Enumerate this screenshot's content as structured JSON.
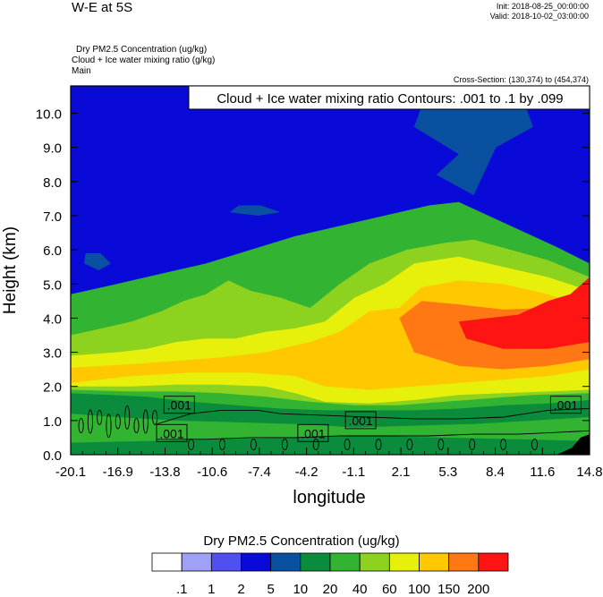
{
  "header": {
    "title": "W-E at 5S",
    "init": "Init: 2018-08-25_00:00:00",
    "valid": "Valid: 2018-10-02_03:00:00",
    "subtitle_1": "Dry PM2.5 Concentration   (ug/kg)",
    "subtitle_2": "Cloud + Ice water mixing ratio   (g/kg)",
    "subtitle_3": "Main",
    "cross_section": "Cross-Section: (130,374) to (454,374)"
  },
  "contour_info": "Cloud + Ice water mixing ratio Contours: .001 to .1 by .099",
  "colorbar": {
    "title": "Dry PM2.5 Concentration  (ug/kg)",
    "colors": [
      "#ffffff",
      "#a0a0f7",
      "#5050f0",
      "#0a0ad8",
      "#0a50a0",
      "#0a8c3c",
      "#32b432",
      "#8cd21e",
      "#e6f00a",
      "#ffc800",
      "#ff7814",
      "#ff1414"
    ],
    "labels": [
      ".1",
      "1",
      "2",
      "5",
      "10",
      "20",
      "40",
      "60",
      "100",
      "150",
      "200"
    ]
  },
  "chart_data": {
    "type": "heatmap",
    "xlabel": "longitude",
    "ylabel": "Height (km)",
    "x_ticks": [
      "-20.1",
      "-16.9",
      "-13.8",
      "-10.6",
      "-7.4",
      "-4.2",
      "-1.1",
      "2.1",
      "5.3",
      "8.4",
      "11.6",
      "14.8"
    ],
    "y_ticks": [
      "0.0",
      "1.0",
      "2.0",
      "3.0",
      "4.0",
      "5.0",
      "6.0",
      "7.0",
      "8.0",
      "9.0",
      "10.0"
    ],
    "xlim": [
      -20.1,
      14.8
    ],
    "ylim": [
      0,
      10.8
    ],
    "contour_labels": [
      {
        "text": ".001",
        "x": -12.8,
        "y": 1.45
      },
      {
        "text": ".001",
        "x": -13.3,
        "y": 0.62
      },
      {
        "text": ".001",
        "x": -3.8,
        "y": 0.62
      },
      {
        "text": ".001",
        "x": -0.6,
        "y": 1.0
      },
      {
        "text": ".001",
        "x": 13.2,
        "y": 1.45
      }
    ],
    "field_regions": [
      {
        "level": 3,
        "poly": [
          [
            -20.1,
            5.2
          ],
          [
            -17,
            6.0
          ],
          [
            -13,
            6.3
          ],
          [
            -10,
            6.5
          ],
          [
            -7,
            6.7
          ],
          [
            -4,
            7.0
          ],
          [
            -1,
            7.4
          ],
          [
            1,
            8.5
          ],
          [
            0.3,
            9.8
          ],
          [
            1.5,
            10.8
          ],
          [
            -20.1,
            10.8
          ]
        ]
      },
      {
        "level": 3,
        "poly": [
          [
            5,
            10.8
          ],
          [
            7,
            9.5
          ],
          [
            10,
            8.4
          ],
          [
            12.5,
            7.7
          ],
          [
            14.8,
            7.3
          ],
          [
            14.8,
            10.8
          ]
        ]
      },
      {
        "level": 4,
        "poly": [
          [
            4,
            10.8
          ],
          [
            3,
            9.6
          ],
          [
            6,
            8.8
          ],
          [
            4.5,
            8.2
          ],
          [
            7,
            7.6
          ],
          [
            8.5,
            9.0
          ],
          [
            11,
            9.6
          ],
          [
            10,
            10.8
          ]
        ]
      },
      {
        "level": 4,
        "poly": [
          [
            -19.2,
            5.6
          ],
          [
            -18.2,
            5.4
          ],
          [
            -17.4,
            5.6
          ],
          [
            -18.1,
            5.9
          ],
          [
            -19.1,
            5.9
          ]
        ]
      },
      {
        "level": 4,
        "poly": [
          [
            -9.4,
            7.1
          ],
          [
            -7.5,
            7.0
          ],
          [
            -6.0,
            7.1
          ],
          [
            -7.3,
            7.3
          ],
          [
            -8.8,
            7.3
          ]
        ]
      },
      {
        "level": 5,
        "poly": [
          [
            -20.1,
            0
          ],
          [
            14.8,
            0
          ],
          [
            14.8,
            2.4
          ],
          [
            12,
            2.3
          ],
          [
            8,
            2.0
          ],
          [
            4,
            1.8
          ],
          [
            0,
            1.75
          ],
          [
            -4,
            1.8
          ],
          [
            -8,
            1.85
          ],
          [
            -12,
            1.9
          ],
          [
            -16,
            1.95
          ],
          [
            -20.1,
            2.0
          ]
        ]
      },
      {
        "level": 6,
        "poly": [
          [
            -20.1,
            1.8
          ],
          [
            -15,
            1.7
          ],
          [
            -12,
            1.55
          ],
          [
            -9,
            1.45
          ],
          [
            -6,
            1.35
          ],
          [
            -3,
            1.3
          ],
          [
            0,
            1.3
          ],
          [
            3,
            1.3
          ],
          [
            6,
            1.35
          ],
          [
            9,
            1.45
          ],
          [
            12,
            1.5
          ],
          [
            14.8,
            1.6
          ],
          [
            14.8,
            5.6
          ],
          [
            12.5,
            6.1
          ],
          [
            10,
            6.6
          ],
          [
            8,
            7.0
          ],
          [
            6,
            7.4
          ],
          [
            4,
            7.3
          ],
          [
            2,
            7.1
          ],
          [
            -2,
            6.7
          ],
          [
            -5,
            6.4
          ],
          [
            -8,
            6.0
          ],
          [
            -11,
            5.6
          ],
          [
            -14,
            5.3
          ],
          [
            -17,
            5.0
          ],
          [
            -20.1,
            4.7
          ]
        ]
      },
      {
        "level": 7,
        "poly": [
          [
            -20.1,
            1.9
          ],
          [
            -16,
            1.85
          ],
          [
            -13,
            1.85
          ],
          [
            -10,
            1.8
          ],
          [
            -7,
            1.7
          ],
          [
            -4,
            1.55
          ],
          [
            -1,
            1.45
          ],
          [
            2,
            1.45
          ],
          [
            5,
            1.55
          ],
          [
            8,
            1.65
          ],
          [
            11,
            1.75
          ],
          [
            14.8,
            1.8
          ],
          [
            14.8,
            5.2
          ],
          [
            12,
            5.7
          ],
          [
            9.5,
            6.0
          ],
          [
            7,
            6.3
          ],
          [
            5,
            6.2
          ],
          [
            2.5,
            6.0
          ],
          [
            0,
            5.6
          ],
          [
            -2,
            5.0
          ],
          [
            -4,
            4.3
          ],
          [
            -6,
            4.6
          ],
          [
            -8,
            4.8
          ],
          [
            -9.5,
            5.1
          ],
          [
            -11,
            4.7
          ],
          [
            -12.5,
            4.5
          ],
          [
            -14,
            4.2
          ],
          [
            -16,
            3.9
          ],
          [
            -18,
            3.7
          ],
          [
            -20.1,
            3.5
          ]
        ]
      },
      {
        "level": 8,
        "poly": [
          [
            -20.1,
            2.0
          ],
          [
            -16,
            2.0
          ],
          [
            -13,
            2.05
          ],
          [
            -10,
            2.05
          ],
          [
            -7,
            2.0
          ],
          [
            -5,
            1.8
          ],
          [
            -3,
            1.55
          ],
          [
            0,
            1.5
          ],
          [
            3,
            1.6
          ],
          [
            6,
            1.75
          ],
          [
            9,
            1.8
          ],
          [
            12,
            1.85
          ],
          [
            14.8,
            1.9
          ],
          [
            14.8,
            4.8
          ],
          [
            12,
            5.2
          ],
          [
            10,
            5.4
          ],
          [
            8,
            5.6
          ],
          [
            6,
            5.8
          ],
          [
            3,
            5.6
          ],
          [
            1,
            5.0
          ],
          [
            -1,
            4.6
          ],
          [
            -3,
            3.9
          ],
          [
            -5,
            3.7
          ],
          [
            -7,
            3.6
          ],
          [
            -9,
            3.4
          ],
          [
            -11,
            3.4
          ],
          [
            -13,
            3.3
          ],
          [
            -15,
            3.1
          ],
          [
            -17,
            3.0
          ],
          [
            -20.1,
            2.9
          ]
        ]
      },
      {
        "level": 9,
        "poly": [
          [
            -20.1,
            2.1
          ],
          [
            -16,
            2.3
          ],
          [
            -12,
            2.4
          ],
          [
            -8,
            2.4
          ],
          [
            -5,
            2.3
          ],
          [
            -3,
            2.0
          ],
          [
            0,
            1.9
          ],
          [
            3,
            2.0
          ],
          [
            6,
            2.1
          ],
          [
            9,
            2.2
          ],
          [
            12,
            2.3
          ],
          [
            14.8,
            2.5
          ],
          [
            14.8,
            4.3
          ],
          [
            12,
            4.7
          ],
          [
            9,
            5.0
          ],
          [
            6,
            5.1
          ],
          [
            3.5,
            4.9
          ],
          [
            2,
            4.3
          ],
          [
            0,
            4.2
          ],
          [
            -2,
            3.6
          ],
          [
            -4,
            3.3
          ],
          [
            -7,
            3.0
          ],
          [
            -10,
            2.85
          ],
          [
            -13,
            2.75
          ],
          [
            -16,
            2.65
          ],
          [
            -20.1,
            2.55
          ]
        ]
      },
      {
        "level": 10,
        "poly": [
          [
            3,
            3.0
          ],
          [
            6,
            2.6
          ],
          [
            9,
            2.5
          ],
          [
            12,
            2.6
          ],
          [
            14.8,
            2.8
          ],
          [
            14.8,
            4.6
          ],
          [
            12,
            4.3
          ],
          [
            9,
            4.25
          ],
          [
            6,
            4.4
          ],
          [
            3.5,
            4.5
          ],
          [
            2,
            4.0
          ]
        ]
      },
      {
        "level": 11,
        "poly": [
          [
            6.5,
            3.4
          ],
          [
            9,
            3.1
          ],
          [
            12,
            3.1
          ],
          [
            14.8,
            3.3
          ],
          [
            14.8,
            5.2
          ],
          [
            13.5,
            4.7
          ],
          [
            12,
            4.5
          ],
          [
            10,
            4.1
          ],
          [
            8,
            4.0
          ],
          [
            6,
            3.9
          ]
        ]
      },
      {
        "level": 6,
        "poly": [
          [
            -20.1,
            0
          ],
          [
            14.8,
            0
          ],
          [
            14.8,
            1.1
          ],
          [
            11,
            1.0
          ],
          [
            7,
            0.9
          ],
          [
            3,
            0.85
          ],
          [
            -1,
            0.8
          ],
          [
            -5,
            0.9
          ],
          [
            -9,
            0.95
          ],
          [
            -13,
            1.0
          ],
          [
            -17,
            1.1
          ],
          [
            -20.1,
            1.2
          ]
        ]
      },
      {
        "level": 5,
        "poly": [
          [
            -20.1,
            0
          ],
          [
            14.8,
            0
          ],
          [
            14.8,
            0.4
          ],
          [
            10,
            0.45
          ],
          [
            5,
            0.5
          ],
          [
            0,
            0.55
          ],
          [
            -5,
            0.5
          ],
          [
            -10,
            0.45
          ],
          [
            -15,
            0.4
          ],
          [
            -20.1,
            0.35
          ]
        ]
      }
    ]
  }
}
